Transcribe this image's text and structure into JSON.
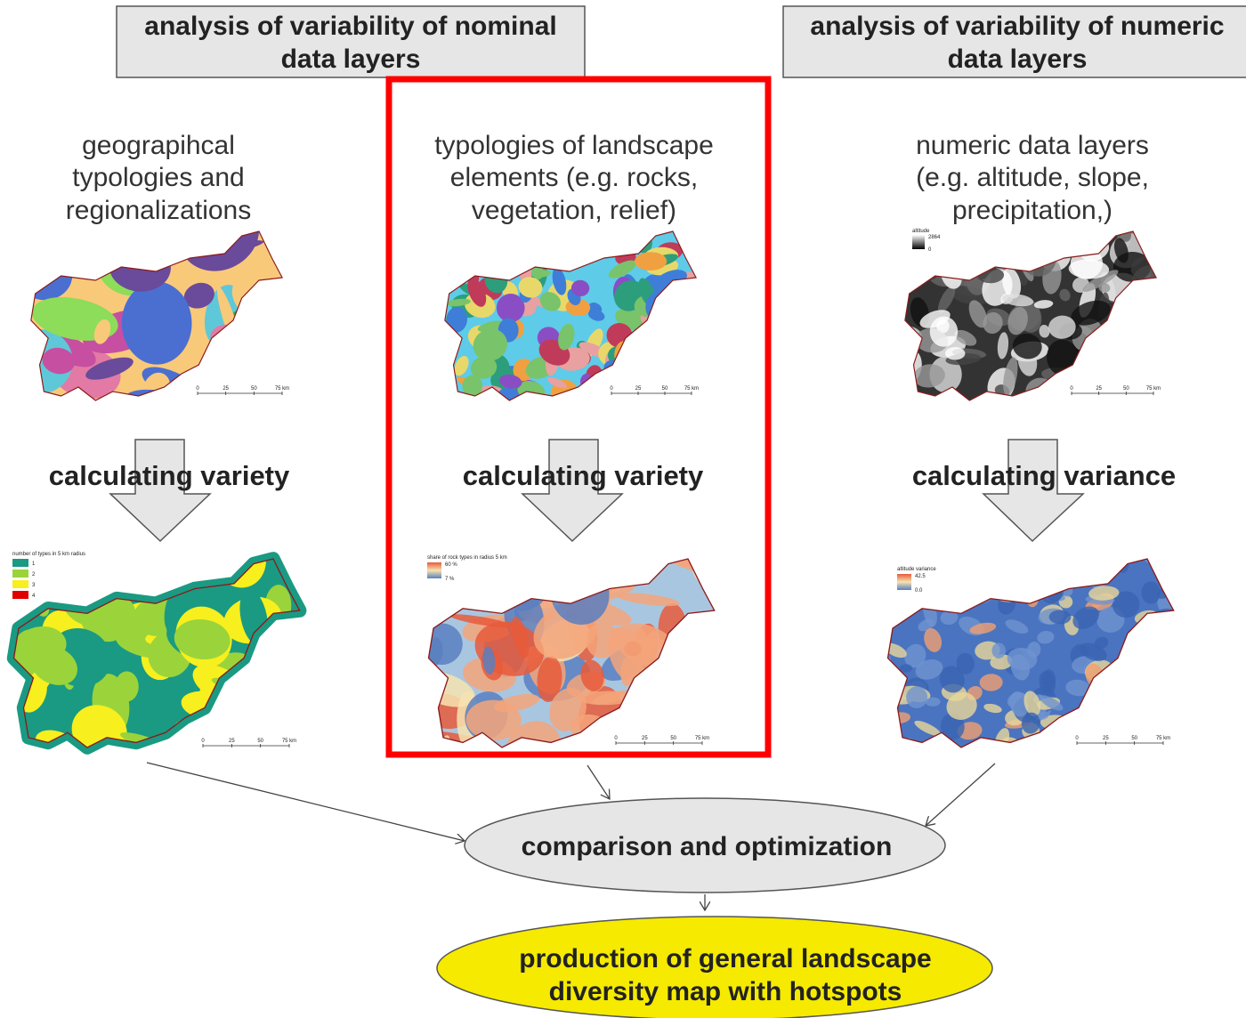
{
  "headers": [
    {
      "lines": [
        "analysis of variability of nominal",
        "data layers"
      ]
    },
    {
      "lines": [
        "analysis of variability of numeric",
        "data layers"
      ]
    }
  ],
  "columns": [
    {
      "label": [
        "geograpihcal",
        "typologies and",
        "regionalizations"
      ],
      "step": "calculating variety",
      "result_legend": {
        "title": "number of types in 5 km radius",
        "items": [
          "1",
          "2",
          "3",
          "4"
        ]
      }
    },
    {
      "label": [
        "typologies of landscape",
        "elements (e.g. rocks,",
        "vegetation, relief)"
      ],
      "step": "calculating variety",
      "result_legend": {
        "title": "share of rock types in radius 5 km",
        "items": [
          "60 %",
          "7 %"
        ]
      }
    },
    {
      "label": [
        "numeric data layers",
        "(e.g. altitude, slope,",
        "precipitation,)"
      ],
      "step": "calculating variance",
      "input_legend": {
        "title": "altitude",
        "items": [
          "2864",
          "0"
        ]
      },
      "result_legend": {
        "title": "altitude variance",
        "items": [
          "42.5",
          "0.0"
        ]
      }
    }
  ],
  "scale_bar": [
    "0",
    "25",
    "50",
    "75 km"
  ],
  "nodes": [
    {
      "lines": [
        "comparison and optimization"
      ]
    },
    {
      "lines": [
        "production of general landscape",
        "diversity map with hotspots"
      ]
    }
  ]
}
